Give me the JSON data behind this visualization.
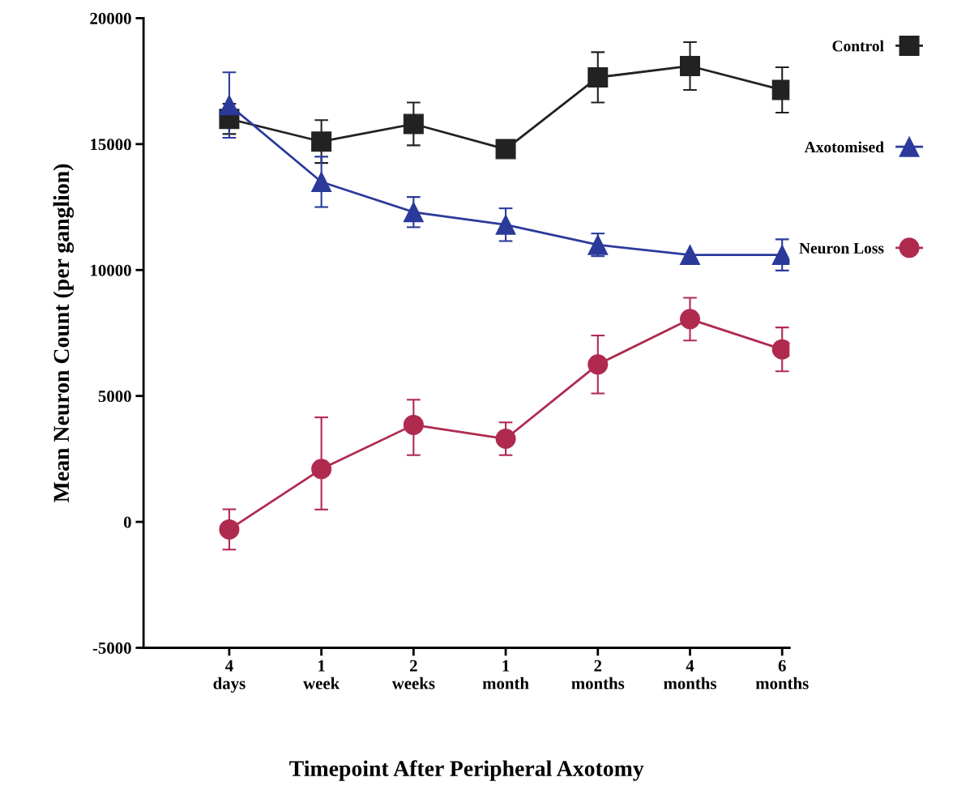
{
  "chart_data": {
    "type": "line",
    "xlabel": "Timepoint After Peripheral Axotomy",
    "ylabel": "Mean Neuron Count (per ganglion)",
    "categories": [
      "4\ndays",
      "1\nweek",
      "2\nweeks",
      "1\nmonth",
      "2\nmonths",
      "4\nmonths",
      "6\nmonths"
    ],
    "ylim": [
      -5000,
      20000
    ],
    "yticks": [
      -5000,
      0,
      5000,
      10000,
      15000,
      20000
    ],
    "grid": false,
    "legend": "right",
    "line_style": "solid",
    "series": [
      {
        "name": "Control",
        "color": "#222222",
        "marker": "square",
        "values": [
          16000,
          15100,
          15800,
          14800,
          17650,
          18100,
          17150
        ],
        "errors": [
          600,
          850,
          850,
          null,
          1000,
          950,
          900
        ]
      },
      {
        "name": "Axotomised",
        "color": "#2b3a9a",
        "marker": "triangle",
        "values": [
          16550,
          13500,
          12300,
          11800,
          11000,
          10600,
          10600
        ],
        "errors": [
          1300,
          1000,
          600,
          650,
          450,
          null,
          620
        ]
      },
      {
        "name": "Neuron Loss",
        "color": "#b02a50",
        "marker": "circle",
        "values": [
          -300,
          2100,
          3850,
          3300,
          6250,
          8050,
          6850
        ],
        "errors": [
          800,
          [
            490,
            4150
          ],
          [
            2650,
            4850
          ],
          650,
          1150,
          850,
          870
        ]
      }
    ]
  }
}
